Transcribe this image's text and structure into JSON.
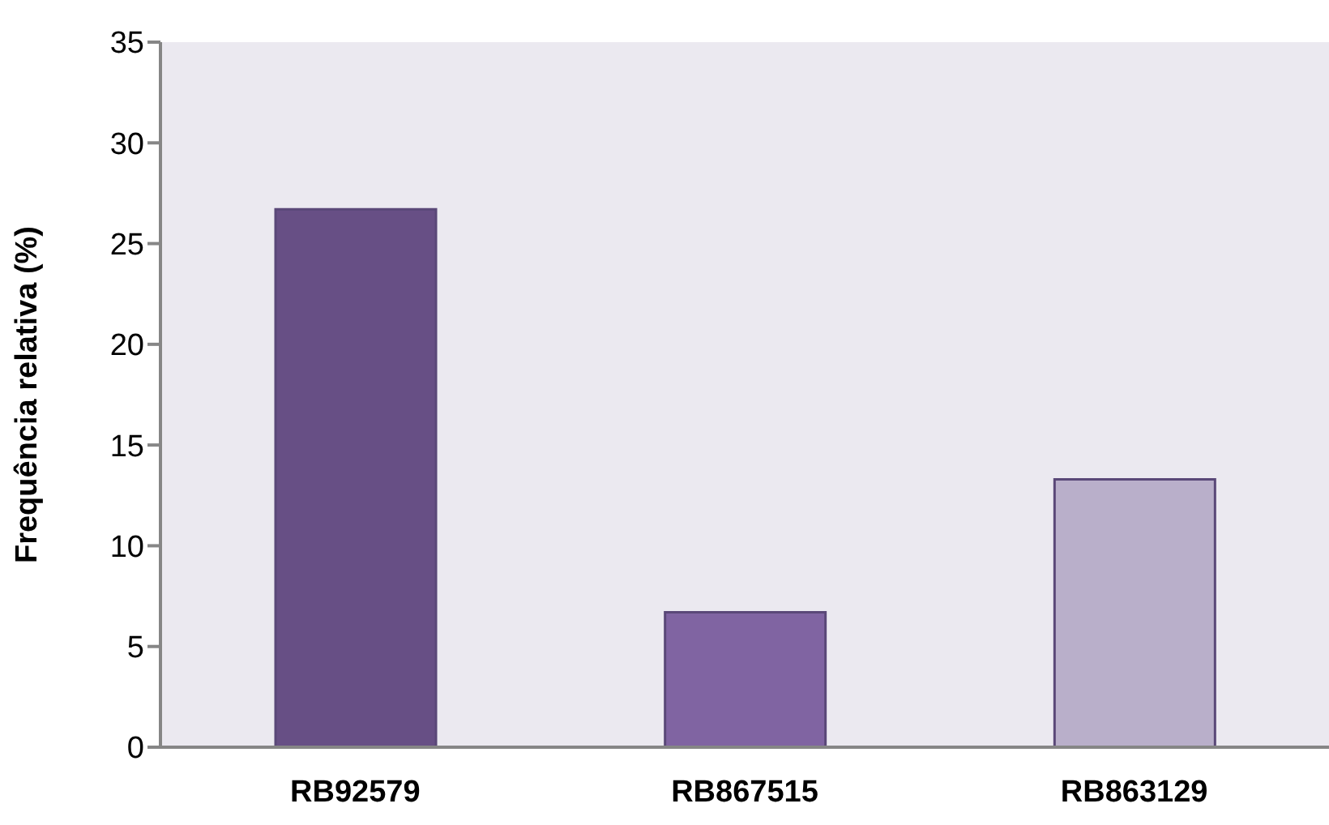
{
  "chart_data": {
    "type": "bar",
    "ylabel": "Frequência relativa (%)",
    "categories": [
      "RB92579",
      "RB867515",
      "RB863129"
    ],
    "values": [
      26.7,
      6.7,
      13.3
    ],
    "colors": [
      "#674f85",
      "#8064a2",
      "#b9afca"
    ],
    "ylim": [
      0,
      35
    ],
    "yticks": [
      0,
      5,
      10,
      15,
      20,
      25,
      30,
      35
    ],
    "grid": false,
    "legend": false
  }
}
